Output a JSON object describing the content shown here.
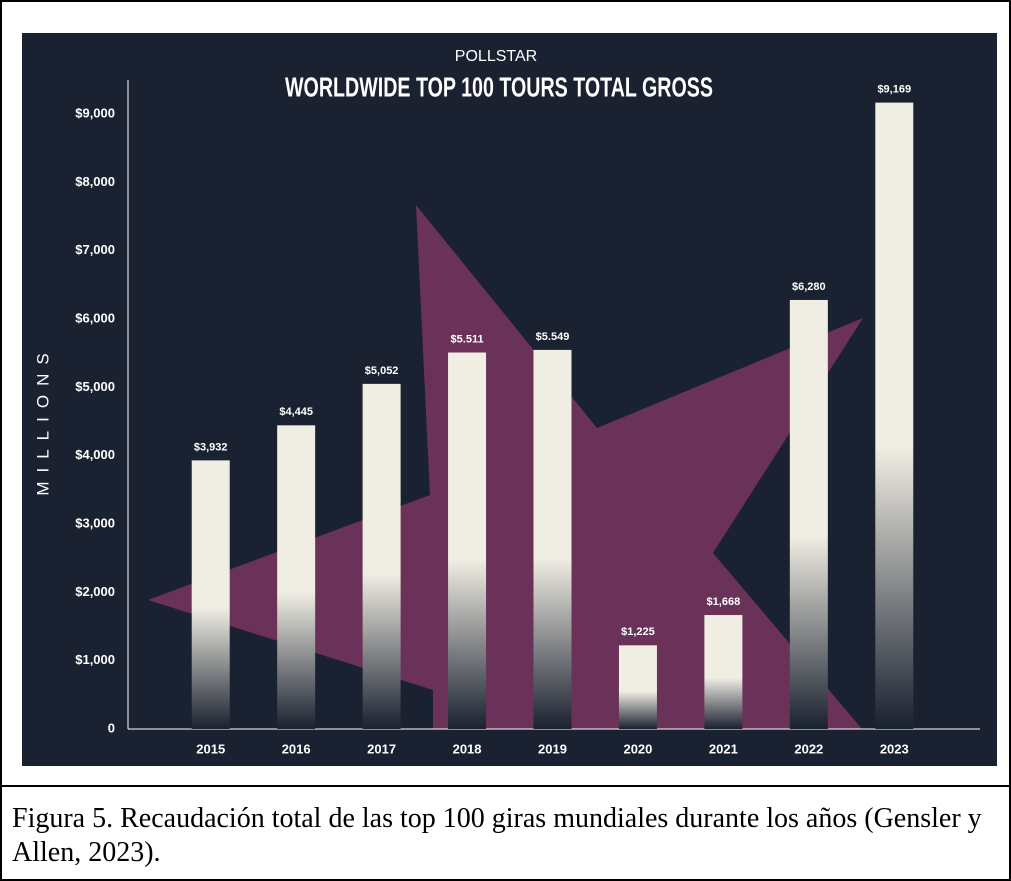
{
  "chart_data": {
    "type": "bar",
    "supertitle": "POLLSTAR",
    "title": "WORLDWIDE TOP 100 TOURS TOTAL GROSS",
    "y_label": "MILLIONS",
    "categories": [
      "2015",
      "2016",
      "2017",
      "2018",
      "2019",
      "2020",
      "2021",
      "2022",
      "2023"
    ],
    "values": [
      3932,
      4445,
      5052,
      5511,
      5549,
      1225,
      1668,
      6280,
      9169
    ],
    "value_labels": [
      "$3,932",
      "$4,445",
      "$5,052",
      "$5.511",
      "$5.549",
      "$1,225",
      "$1,668",
      "$6,280",
      "$9,169"
    ],
    "color": "#f0ede3",
    "ylim": [
      0,
      9500
    ],
    "yticks": [
      0,
      {
        "value": 1000,
        "label": "$1,000"
      },
      {
        "value": 2000,
        "label": "$2,000"
      },
      {
        "value": 3000,
        "label": "$3,000"
      },
      {
        "value": 4000,
        "label": "$4,000"
      },
      {
        "value": 5000,
        "label": "$5,000"
      },
      {
        "value": 6000,
        "label": "$6,000"
      },
      {
        "value": 7000,
        "label": "$7,000"
      },
      {
        "value": 8000,
        "label": "$8,000"
      },
      {
        "value": 9000,
        "label": "$9,000"
      }
    ]
  },
  "caption": "Figura 5. Recaudación total de las top 100 giras mundiales durante los años (Gensler y Allen, 2023)."
}
